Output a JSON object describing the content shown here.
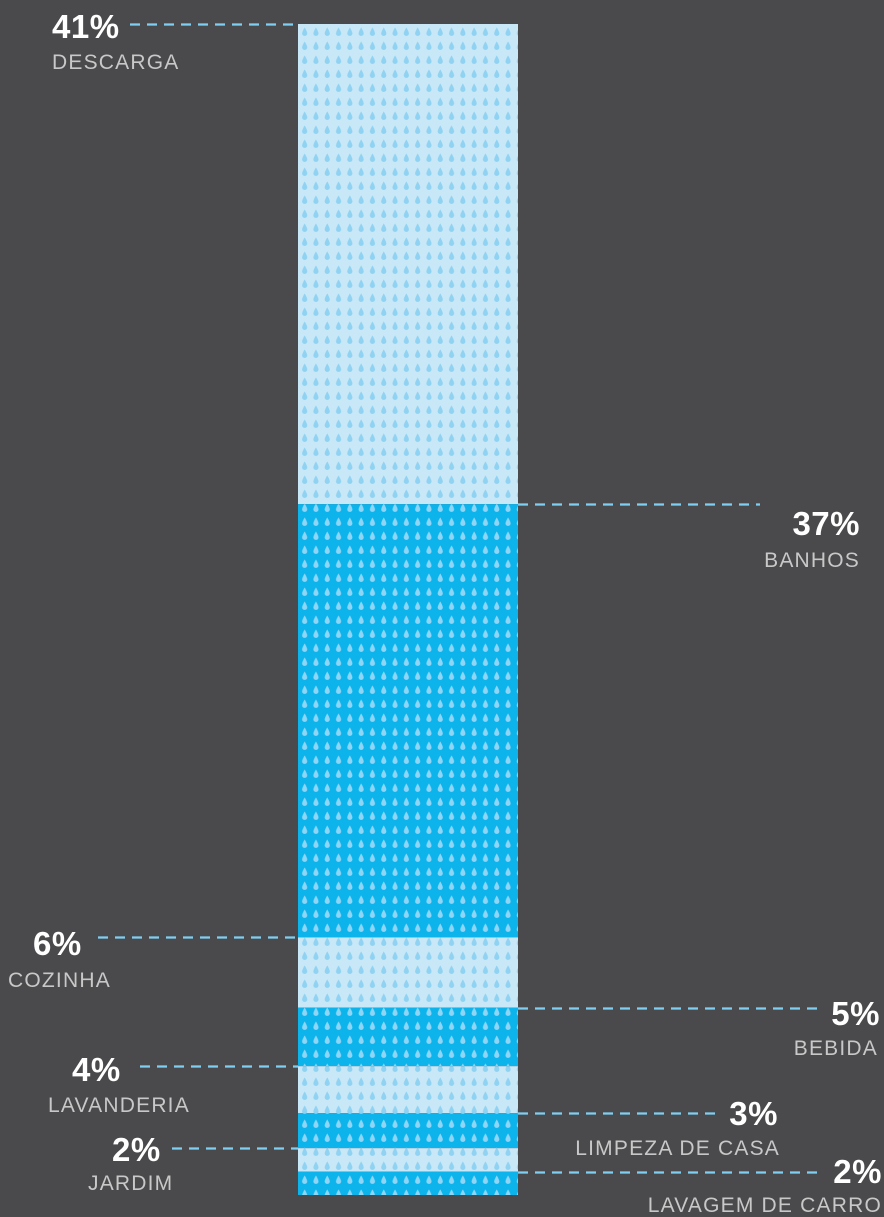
{
  "chart_data": {
    "type": "bar",
    "title": "",
    "stacked": true,
    "categories": [
      "DESCARGA",
      "BANHOS",
      "COZINHA",
      "BEBIDA",
      "LAVANDERIA",
      "LIMPEZA DE CASA",
      "JARDIM",
      "LAVAGEM DE CARRO"
    ],
    "values": [
      41,
      37,
      6,
      5,
      4,
      3,
      2,
      2
    ],
    "value_labels": [
      "41%",
      "37%",
      "6%",
      "5%",
      "4%",
      "3%",
      "2%",
      "2%"
    ],
    "label_sides": [
      "left",
      "right",
      "left",
      "right",
      "left",
      "right",
      "left",
      "right"
    ],
    "segment_colors": [
      "#c8e8f8",
      "#0db4ec",
      "#c8e8f8",
      "#0db4ec",
      "#c8e8f8",
      "#0db4ec",
      "#c8e8f8",
      "#0db4ec"
    ],
    "drop_colors": [
      "#8fd2f2",
      "#8fd6f6",
      "#8fd2f2",
      "#8fd6f6",
      "#8fd2f2",
      "#8fd6f6",
      "#8fd2f2",
      "#8fd6f6"
    ],
    "leader_color": "#7fcff2",
    "background": "#4a4a4c"
  }
}
